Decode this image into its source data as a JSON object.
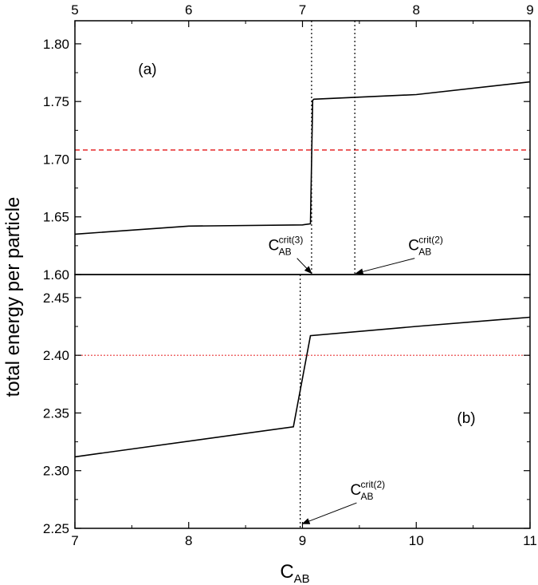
{
  "chart_data": [
    {
      "panel": "a",
      "type": "line",
      "panel_label": "(a)",
      "x_axis_position": "top",
      "xlim": [
        5,
        9
      ],
      "ylim": [
        1.6,
        1.82
      ],
      "xticks": [
        5,
        6,
        7,
        8,
        9
      ],
      "xtick_labels": [
        "5",
        "6",
        "7",
        "8",
        "9"
      ],
      "yticks": [
        1.6,
        1.65,
        1.7,
        1.75,
        1.8
      ],
      "ytick_labels": [
        "1.60",
        "1.65",
        "1.70",
        "1.75",
        "1.80"
      ],
      "series": [
        {
          "color": "#000000",
          "style": "solid",
          "x": [
            5.0,
            6.0,
            7.0,
            7.07,
            7.09,
            7.1,
            8.0,
            9.0
          ],
          "y": [
            1.635,
            1.642,
            1.643,
            1.644,
            1.751,
            1.752,
            1.756,
            1.767
          ]
        }
      ],
      "hlines": [
        {
          "y": 1.708,
          "color": "#e8383a",
          "style": "dashed"
        }
      ],
      "vlines": [
        {
          "x": 7.08,
          "style": "dotted"
        },
        {
          "x": 7.46,
          "style": "dotted"
        }
      ],
      "annotations": [
        {
          "main": "C",
          "sub": "AB",
          "sup": "crit(3)",
          "text_x": 6.7,
          "text_y": 1.621,
          "arrow_to_x": 7.08,
          "arrow_to_y": 1.601
        },
        {
          "main": "C",
          "sub": "AB",
          "sup": "crit(2)",
          "text_x": 7.93,
          "text_y": 1.621,
          "arrow_to_x": 7.47,
          "arrow_to_y": 1.601
        }
      ]
    },
    {
      "panel": "b",
      "type": "line",
      "panel_label": "(b)",
      "x_axis_position": "bottom",
      "xlim": [
        7,
        11
      ],
      "ylim": [
        2.25,
        2.47
      ],
      "xticks": [
        7,
        8,
        9,
        10,
        11
      ],
      "xtick_labels": [
        "7",
        "8",
        "9",
        "10",
        "11"
      ],
      "yticks": [
        2.25,
        2.3,
        2.35,
        2.4,
        2.45
      ],
      "ytick_labels": [
        "2.25",
        "2.30",
        "2.35",
        "2.40",
        "2.45"
      ],
      "series": [
        {
          "color": "#000000",
          "style": "solid",
          "x": [
            7.0,
            8.92,
            9.07,
            10.0,
            11.0
          ],
          "y": [
            2.312,
            2.338,
            2.417,
            2.425,
            2.433
          ]
        }
      ],
      "hlines": [
        {
          "y": 2.4,
          "color": "#e8383a",
          "style": "dotted"
        }
      ],
      "vlines": [
        {
          "x": 8.98,
          "style": "dotted"
        }
      ],
      "annotations": [
        {
          "main": "C",
          "sub": "AB",
          "sup": "crit(2)",
          "text_x": 9.42,
          "text_y": 2.279,
          "arrow_to_x": 9.0,
          "arrow_to_y": 2.254
        }
      ]
    }
  ],
  "ylabel": "total energy per particle",
  "xlabel_main": "C",
  "xlabel_sub": "AB"
}
